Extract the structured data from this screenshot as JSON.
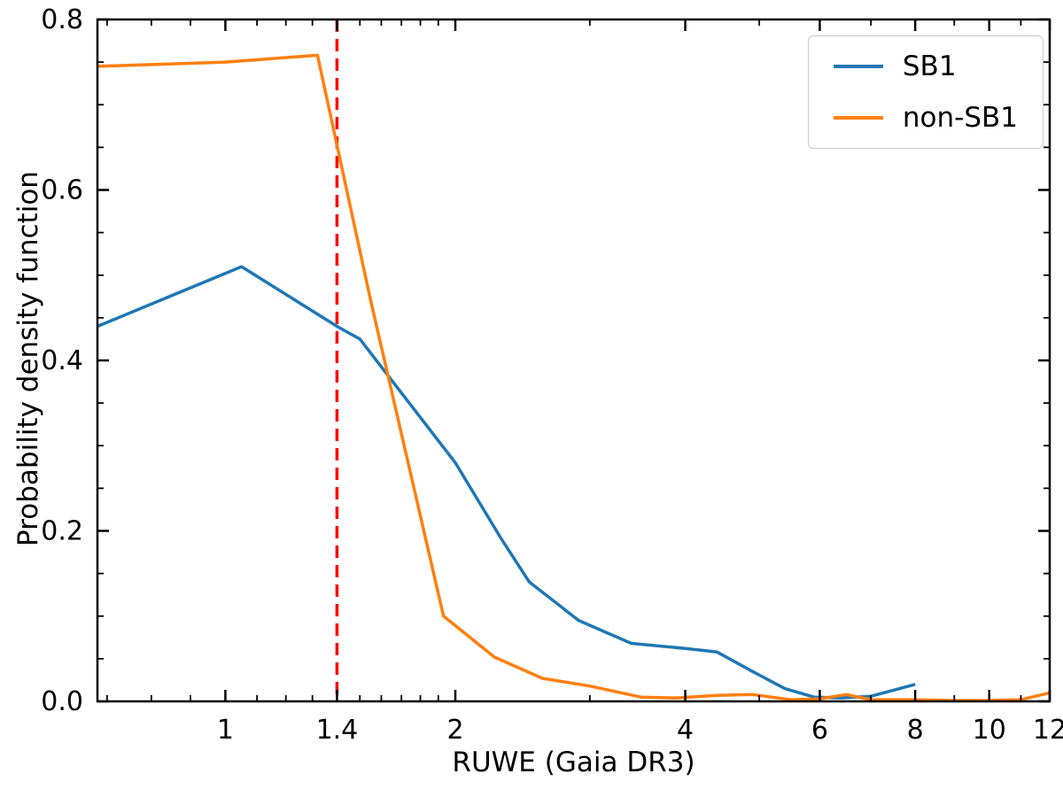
{
  "figure": {
    "background": "#ffffff"
  },
  "chart_data": {
    "type": "line",
    "title": "",
    "xlabel": "RUWE (Gaia DR3)",
    "ylabel": "Probability density function",
    "xscale": "log",
    "xlim": [
      0.68,
      12
    ],
    "ylim": [
      0.0,
      0.8
    ],
    "grid": false,
    "xticks": {
      "values": [
        1,
        1.4,
        2,
        4,
        6,
        8,
        10,
        12
      ],
      "labels": [
        "1",
        "1.4",
        "2",
        "4",
        "6",
        "8",
        "10",
        "12"
      ]
    },
    "xminorticks": [
      0.7,
      0.8,
      0.9,
      1.1,
      1.2,
      1.3,
      1.5,
      1.6,
      1.7,
      1.8,
      1.9,
      3,
      5,
      7,
      9,
      11
    ],
    "yticks": {
      "values": [
        0.0,
        0.2,
        0.4,
        0.6,
        0.8
      ],
      "labels": [
        "0.0",
        "0.2",
        "0.4",
        "0.6",
        "0.8"
      ]
    },
    "yminorticks": [
      0.05,
      0.1,
      0.15,
      0.25,
      0.3,
      0.35,
      0.45,
      0.5,
      0.55,
      0.65,
      0.7,
      0.75
    ],
    "legend": {
      "position": "upper right",
      "edge_color": "#cccccc",
      "entries": [
        "SB1",
        "non-SB1"
      ]
    },
    "vline": {
      "x": 1.4,
      "color": "#ff0000",
      "style": "dashed"
    },
    "series": [
      {
        "name": "SB1",
        "color": "#1f77b4",
        "x": [
          0.68,
          1.05,
          1.4,
          1.5,
          2.0,
          2.3,
          2.5,
          2.9,
          3.4,
          4.0,
          4.4,
          4.9,
          5.4,
          5.9,
          6.4,
          7.0,
          8.0
        ],
        "y": [
          0.44,
          0.51,
          0.44,
          0.425,
          0.28,
          0.19,
          0.14,
          0.095,
          0.068,
          0.062,
          0.058,
          0.035,
          0.015,
          0.005,
          0.004,
          0.006,
          0.02
        ]
      },
      {
        "name": "non-SB1",
        "color": "#ff7f0e",
        "x": [
          0.68,
          1.0,
          1.32,
          1.55,
          1.93,
          2.25,
          2.6,
          3.0,
          3.5,
          3.9,
          4.4,
          4.9,
          5.5,
          6.0,
          6.5,
          7.0,
          8.0,
          9.0,
          10.0,
          11.0,
          12.0
        ],
        "y": [
          0.745,
          0.75,
          0.758,
          0.47,
          0.1,
          0.052,
          0.027,
          0.018,
          0.005,
          0.004,
          0.007,
          0.008,
          0.002,
          0.003,
          0.008,
          0.002,
          0.002,
          0.001,
          0.001,
          0.002,
          0.01
        ]
      }
    ]
  }
}
